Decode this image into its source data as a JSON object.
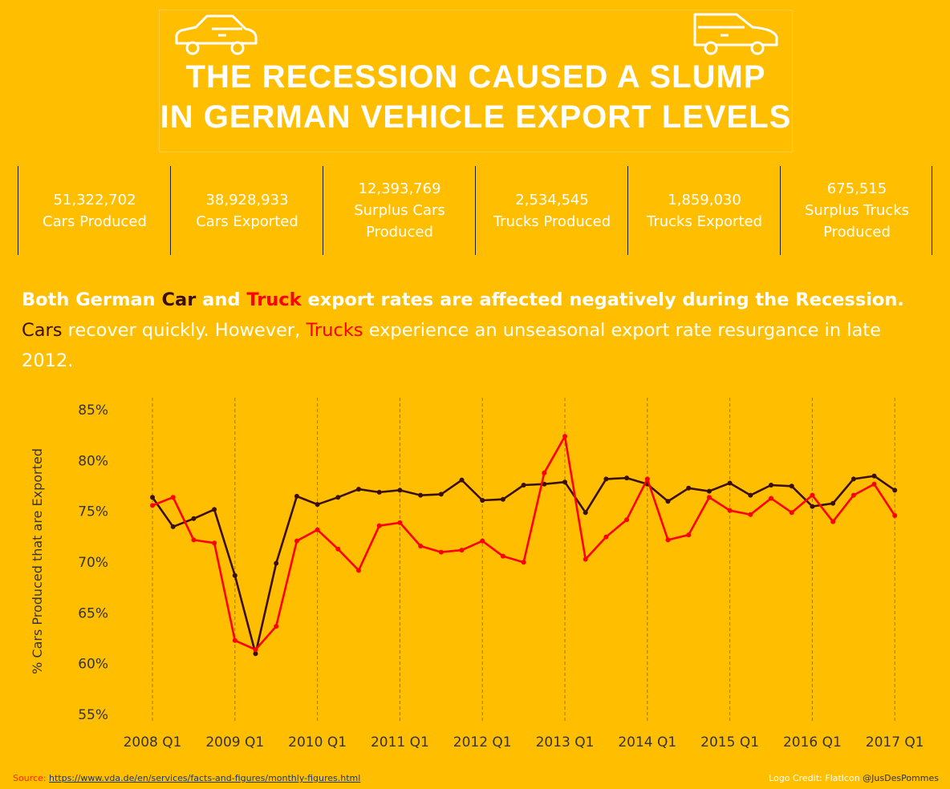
{
  "header": {
    "title_line1": "The Recession caused a slump",
    "title_line2": "in German Vehicle Export levels",
    "icons": [
      "car-icon",
      "suv-icon"
    ]
  },
  "kpis": [
    {
      "value": "51,322,702",
      "label": "Cars Produced"
    },
    {
      "value": "38,928,933",
      "label": "Cars Exported"
    },
    {
      "value": "12,393,769",
      "label": "Surplus Cars\nProduced"
    },
    {
      "value": "2,534,545",
      "label": "Trucks Produced"
    },
    {
      "value": "1,859,030",
      "label": "Trucks Exported"
    },
    {
      "value": "675,515",
      "label": "Surplus Trucks\nProduced"
    }
  ],
  "story": {
    "line1_a": "Both German ",
    "line1_car": "Car",
    "line1_b": " and ",
    "line1_truck": "Truck",
    "line1_c": " export rates are affected negatively during the Recession.",
    "line2_car": "Cars",
    "line2_a": " recover quickly. However, ",
    "line2_truck": "Trucks",
    "line2_b": " experience an unseasonal export rate resurgance in late 2012."
  },
  "colors": {
    "background": "#FFBE00",
    "car_series": "#3a1005",
    "truck_series": "#FF0000",
    "text_white": "#FFFFFF"
  },
  "chart_data": {
    "type": "line",
    "ylabel": "% Cars Produced that are Exported",
    "xlabel": "",
    "ylim": [
      55,
      85
    ],
    "yticks": [
      "85%",
      "80%",
      "75%",
      "70%",
      "65%",
      "60%",
      "55%"
    ],
    "ytick_values": [
      85,
      80,
      75,
      70,
      65,
      60,
      55
    ],
    "xtick_labels": [
      "2008 Q1",
      "2009 Q1",
      "2010 Q1",
      "2011 Q1",
      "2012 Q1",
      "2013 Q1",
      "2014 Q1",
      "2015 Q1",
      "2016 Q1",
      "2017 Q1"
    ],
    "x": [
      "2008 Q1",
      "2008 Q2",
      "2008 Q3",
      "2008 Q4",
      "2009 Q1",
      "2009 Q2",
      "2009 Q3",
      "2009 Q4",
      "2010 Q1",
      "2010 Q2",
      "2010 Q3",
      "2010 Q4",
      "2011 Q1",
      "2011 Q2",
      "2011 Q3",
      "2011 Q4",
      "2012 Q1",
      "2012 Q2",
      "2012 Q3",
      "2012 Q4",
      "2013 Q1",
      "2013 Q2",
      "2013 Q3",
      "2013 Q4",
      "2014 Q1",
      "2014 Q2",
      "2014 Q3",
      "2014 Q4",
      "2015 Q1",
      "2015 Q2",
      "2015 Q3",
      "2015 Q4",
      "2016 Q1",
      "2016 Q2",
      "2016 Q3",
      "2016 Q4",
      "2017 Q1"
    ],
    "grid": "vertical dashed at each Q1",
    "series": [
      {
        "key": "car",
        "color": "#3a1005",
        "values": [
          76.3,
          73.4,
          74.2,
          75.1,
          68.6,
          60.9,
          69.8,
          76.4,
          75.6,
          76.3,
          77.1,
          76.8,
          77.0,
          76.5,
          76.6,
          78.0,
          76.0,
          76.1,
          77.5,
          77.6,
          77.8,
          74.8,
          78.1,
          78.2,
          77.6,
          75.9,
          77.2,
          76.9,
          77.7,
          76.5,
          77.5,
          77.4,
          75.4,
          75.7,
          78.1,
          78.4,
          77.0
        ]
      },
      {
        "key": "truck",
        "color": "#FF0000",
        "values": [
          75.5,
          76.3,
          72.1,
          71.8,
          62.2,
          61.3,
          63.6,
          72.0,
          73.1,
          71.2,
          69.1,
          73.5,
          73.8,
          71.5,
          70.9,
          71.1,
          72.0,
          70.5,
          69.9,
          78.7,
          82.3,
          70.2,
          72.4,
          74.1,
          78.1,
          72.1,
          72.6,
          76.3,
          75.0,
          74.6,
          76.2,
          74.8,
          76.5,
          73.9,
          76.5,
          77.6,
          74.5
        ]
      }
    ]
  },
  "footer": {
    "source_label": "Source: ",
    "source_url": "https://www.vda.de/en/services/facts-and-figures/monthly-figures.html",
    "credit": "Logo Credit: FlatIcon ",
    "handle": "@JusDesPommes"
  }
}
